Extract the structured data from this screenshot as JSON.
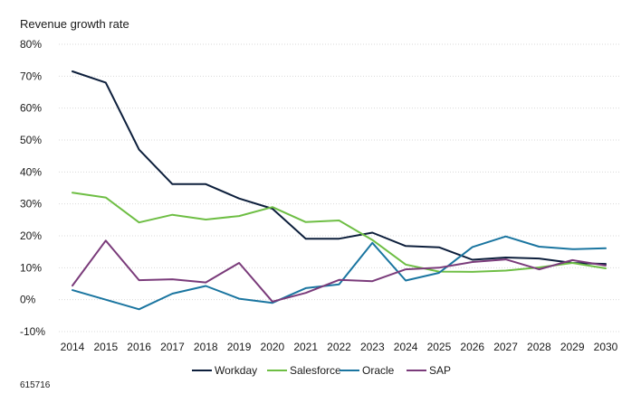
{
  "chart_data": {
    "type": "line",
    "title": "",
    "ylabel": "Revenue growth rate",
    "xlabel": "",
    "ylim": [
      -10,
      80
    ],
    "yticks": [
      -10,
      0,
      10,
      20,
      30,
      40,
      50,
      60,
      70,
      80
    ],
    "ytick_labels": [
      "-10%",
      "0%",
      "10%",
      "20%",
      "30%",
      "40%",
      "50%",
      "60%",
      "70%",
      "80%"
    ],
    "x": [
      "2014",
      "2015",
      "2016",
      "2017",
      "2018",
      "2019",
      "2020",
      "2021",
      "2022",
      "2023",
      "2024",
      "2025",
      "2026",
      "2027",
      "2028",
      "2029",
      "2030"
    ],
    "grid": true,
    "legend_position": "bottom",
    "series": [
      {
        "name": "Workday",
        "color": "#0d1f3c",
        "values": [
          71.5,
          68,
          47,
          36.2,
          36.2,
          31.7,
          28.5,
          19.1,
          19.1,
          21,
          16.8,
          16.4,
          12.5,
          13.2,
          12.9,
          11.5,
          11.2
        ]
      },
      {
        "name": "Salesforce",
        "color": "#6ebe44",
        "values": [
          33.5,
          32,
          24.2,
          26.6,
          25.1,
          26.2,
          29,
          24.3,
          24.8,
          18.7,
          11,
          8.8,
          8.7,
          9.1,
          10.1,
          11.5,
          9.8
        ]
      },
      {
        "name": "Oracle",
        "color": "#1a75a0",
        "values": [
          3,
          0,
          -3,
          1.9,
          4.3,
          0.3,
          -1,
          3.6,
          4.8,
          17.8,
          6,
          8.4,
          16.5,
          19.8,
          16.6,
          15.8,
          16.1
        ]
      },
      {
        "name": "SAP",
        "color": "#7a3b7a",
        "values": [
          4.4,
          18.5,
          6.1,
          6.4,
          5.4,
          11.5,
          -0.6,
          2.1,
          6.2,
          5.8,
          9.5,
          10,
          11.8,
          12.6,
          9.5,
          12.4,
          10.7
        ]
      }
    ]
  },
  "footnote": "615716"
}
